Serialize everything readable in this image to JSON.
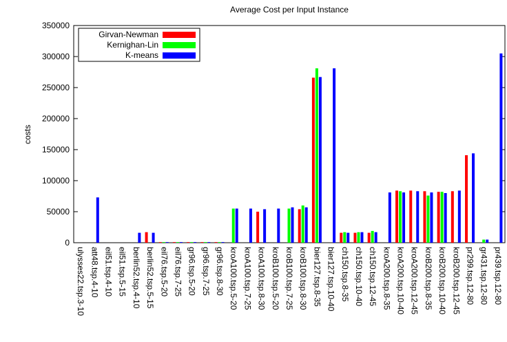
{
  "chart_data": {
    "type": "bar",
    "title": "Average Cost per Input Instance",
    "ylabel": "costs",
    "categories": [
      "ulysses22.tsp.3-10",
      "att48.tsp.4-10",
      "eil51.tsp.4-10",
      "eil51.tsp.5-15",
      "berlin52.tsp.4-10",
      "berlin52.tsp.5-15",
      "eil76.tsp.5-20",
      "eil76.tsp.7-25",
      "gr96.tsp.5-20",
      "gr96.tsp.7-25",
      "gr96.tsp.8-30",
      "kroA100.tsp.5-20",
      "kroA100.tsp.7-25",
      "kroA100.tsp.8-30",
      "kroB100.tsp.5-20",
      "kroB100.tsp.7-25",
      "kroB100.tsp.8-30",
      "bier127.tsp.8-35",
      "bier127.tsp.10-40",
      "ch150.tsp.8-35",
      "ch150.tsp.10-40",
      "ch150.tsp.12-45",
      "kroA200.tsp.8-35",
      "kroA200.tsp.10-40",
      "kroA200.tsp.12-45",
      "kroB200.tsp.8-35",
      "kroB200.tsp.10-40",
      "kroB200.tsp.12-45",
      "pr299.tsp.12-80",
      "gr431.tsp.12-80",
      "pr439.tsp.12-80"
    ],
    "series": [
      {
        "name": "Girvan-Newman",
        "color": "#ff0000",
        "values": [
          0,
          0,
          0,
          0,
          0,
          17000,
          1000,
          1000,
          1000,
          1000,
          1000,
          0,
          0,
          50000,
          0,
          0,
          54000,
          266000,
          0,
          16000,
          16000,
          16000,
          0,
          84000,
          84000,
          83000,
          82000,
          83000,
          141000,
          0,
          0
        ]
      },
      {
        "name": "Kernighan-Lin",
        "color": "#00ff00",
        "values": [
          0,
          0,
          0,
          0,
          0,
          0,
          1000,
          1000,
          1000,
          1000,
          1000,
          55000,
          0,
          0,
          0,
          55000,
          60000,
          281000,
          0,
          17000,
          17000,
          19000,
          0,
          83000,
          0,
          76000,
          82000,
          0,
          0,
          5000,
          0
        ]
      },
      {
        "name": "K-means",
        "color": "#0000ff",
        "values": [
          0,
          73000,
          0,
          0,
          16000,
          16000,
          1000,
          1000,
          1000,
          1000,
          1000,
          55000,
          55000,
          54000,
          55000,
          57000,
          57000,
          267000,
          281000,
          16000,
          17000,
          17000,
          81000,
          81000,
          83000,
          81000,
          80000,
          84000,
          144000,
          5000,
          305000
        ]
      }
    ],
    "ylim": [
      0,
      350000
    ],
    "yticks": [
      0,
      50000,
      100000,
      150000,
      200000,
      250000,
      300000,
      350000
    ],
    "legend": "upper left"
  }
}
